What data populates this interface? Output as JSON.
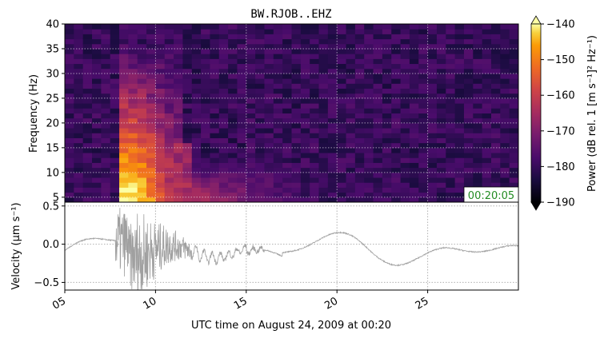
{
  "chart_data": [
    {
      "type": "heatmap",
      "title": "BW.RJOB..EHZ",
      "xlabel": "",
      "ylabel": "Frequency (Hz)",
      "ylim": [
        4,
        40
      ],
      "yticks": [
        "5",
        "10",
        "15",
        "20",
        "25",
        "30",
        "35",
        "40"
      ],
      "grid": true,
      "colormap": "inferno",
      "colorbar": {
        "label": "Power (dB rel. 1 [m s⁻¹]² Hz⁻¹)",
        "range": [
          -190,
          -140
        ],
        "ticks": [
          "−190",
          "−180",
          "−170",
          "−160",
          "−150",
          "−140"
        ],
        "extend": "both"
      },
      "time_stamp": "00:20:05",
      "stamp_color": "#228b22"
    },
    {
      "type": "line",
      "title": "",
      "ylabel": "Velocity (μm s⁻¹)",
      "xlabel": "UTC time on August 24, 2009 at 00:20",
      "ylim": [
        -0.6,
        0.55
      ],
      "yticks": [
        "−0.5",
        "0.0",
        "0.5"
      ],
      "xticks": [
        "05",
        "10",
        "15",
        "20",
        "25"
      ],
      "xlim_seconds": [
        5,
        30
      ],
      "grid": true,
      "line_color": "#a0a0a0"
    }
  ]
}
